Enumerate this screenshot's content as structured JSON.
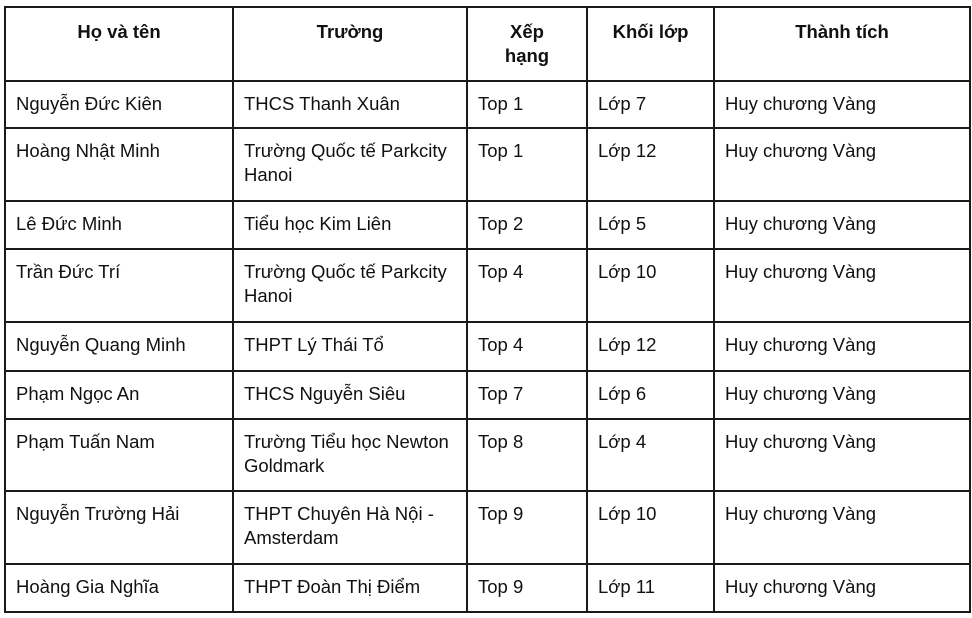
{
  "headers": [
    "Họ và tên",
    "Trường",
    "Xếp hạng",
    "Khối lớp",
    "Thành tích"
  ],
  "rows": [
    [
      "Nguyễn Đức Kiên",
      "THCS Thanh Xuân",
      "Top 1",
      "Lớp 7",
      "Huy chương Vàng"
    ],
    [
      "Hoàng Nhật Minh",
      "Trường Quốc tế Parkcity Hanoi",
      "Top 1",
      "Lớp 12",
      "Huy chương Vàng"
    ],
    [
      "Lê Đức Minh",
      "Tiểu học Kim Liên",
      "Top 2",
      "Lớp 5",
      "Huy chương Vàng"
    ],
    [
      "Trần Đức Trí",
      "Trường Quốc tế Parkcity Hanoi",
      "Top 4",
      "Lớp 10",
      "Huy chương Vàng"
    ],
    [
      "Nguyễn Quang Minh",
      "THPT Lý Thái Tổ",
      "Top 4",
      "Lớp 12",
      "Huy chương Vàng"
    ],
    [
      "Phạm Ngọc An",
      "THCS Nguyễn Siêu",
      "Top 7",
      "Lớp 6",
      "Huy chương Vàng"
    ],
    [
      "Phạm Tuấn Nam",
      "Trường Tiểu học Newton Goldmark",
      "Top 8",
      "Lớp 4",
      "Huy chương Vàng"
    ],
    [
      "Nguyễn Trường Hải",
      "THPT Chuyên Hà Nội - Amsterdam",
      "Top 9",
      "Lớp 10",
      "Huy chương Vàng"
    ],
    [
      "Hoàng Gia Nghĩa",
      "THPT Đoàn Thị Điểm",
      "Top 9",
      "Lớp 11",
      "Huy chương Vàng"
    ]
  ]
}
